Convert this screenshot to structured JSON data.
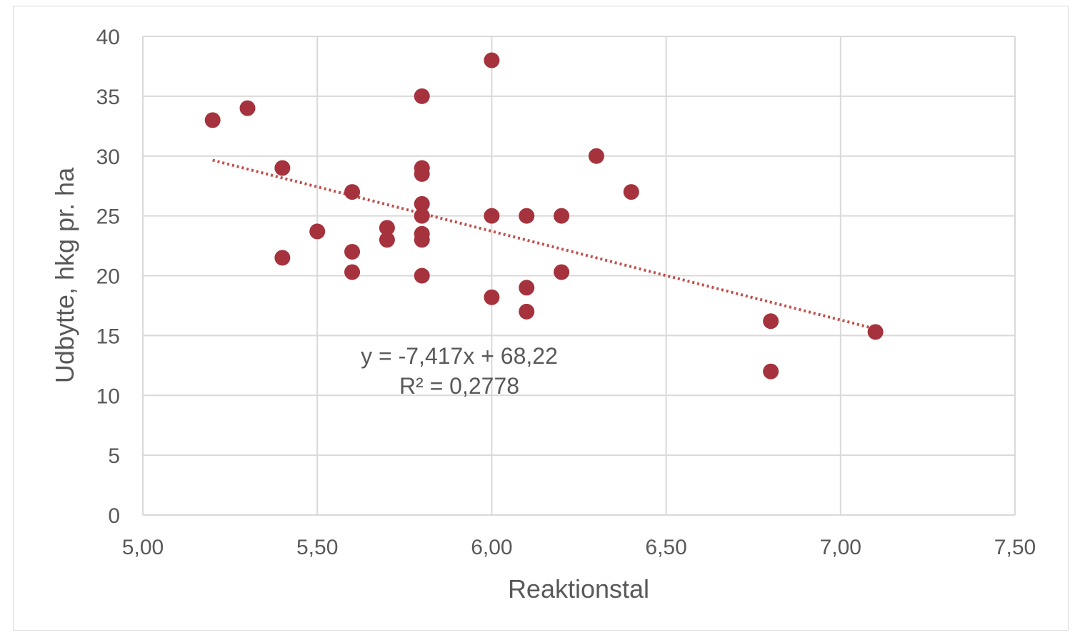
{
  "chart_data": {
    "type": "scatter",
    "title": "",
    "xlabel": "Reaktionstal",
    "ylabel": "Udbytte, hkg pr. ha",
    "xlim": [
      5.0,
      7.5
    ],
    "ylim": [
      0,
      40
    ],
    "xticks": [
      5.0,
      5.5,
      6.0,
      6.5,
      7.0,
      7.5
    ],
    "xtick_labels": [
      "5,00",
      "5,50",
      "6,00",
      "6,50",
      "7,00",
      "7,50"
    ],
    "yticks": [
      0,
      5,
      10,
      15,
      20,
      25,
      30,
      35,
      40
    ],
    "ytick_labels": [
      "0",
      "5",
      "10",
      "15",
      "20",
      "25",
      "30",
      "35",
      "40"
    ],
    "grid": true,
    "legend": "none",
    "marker_color": "#A5323C",
    "trendline_color": "#C0504D",
    "points": [
      {
        "x": 5.2,
        "y": 33
      },
      {
        "x": 5.3,
        "y": 34
      },
      {
        "x": 5.4,
        "y": 29
      },
      {
        "x": 5.4,
        "y": 21.5
      },
      {
        "x": 5.5,
        "y": 23.7
      },
      {
        "x": 5.6,
        "y": 27
      },
      {
        "x": 5.6,
        "y": 22
      },
      {
        "x": 5.6,
        "y": 20.3
      },
      {
        "x": 5.7,
        "y": 24
      },
      {
        "x": 5.7,
        "y": 23
      },
      {
        "x": 5.8,
        "y": 35
      },
      {
        "x": 5.8,
        "y": 29
      },
      {
        "x": 5.8,
        "y": 28.5
      },
      {
        "x": 5.8,
        "y": 26
      },
      {
        "x": 5.8,
        "y": 25
      },
      {
        "x": 5.8,
        "y": 23.5
      },
      {
        "x": 5.8,
        "y": 23
      },
      {
        "x": 5.8,
        "y": 20
      },
      {
        "x": 6.0,
        "y": 38
      },
      {
        "x": 6.0,
        "y": 25
      },
      {
        "x": 6.0,
        "y": 18.2
      },
      {
        "x": 6.1,
        "y": 25
      },
      {
        "x": 6.1,
        "y": 19
      },
      {
        "x": 6.1,
        "y": 17
      },
      {
        "x": 6.2,
        "y": 25
      },
      {
        "x": 6.2,
        "y": 20.3
      },
      {
        "x": 6.3,
        "y": 30
      },
      {
        "x": 6.4,
        "y": 27
      },
      {
        "x": 6.8,
        "y": 16.2
      },
      {
        "x": 6.8,
        "y": 12
      },
      {
        "x": 7.1,
        "y": 15.3
      }
    ],
    "trendline": {
      "slope": -7.417,
      "intercept": 68.22,
      "x_range": [
        5.2,
        7.1
      ],
      "equation_label": "y = -7,417x + 68,22",
      "r2_label": "R² = 0,2778"
    }
  }
}
